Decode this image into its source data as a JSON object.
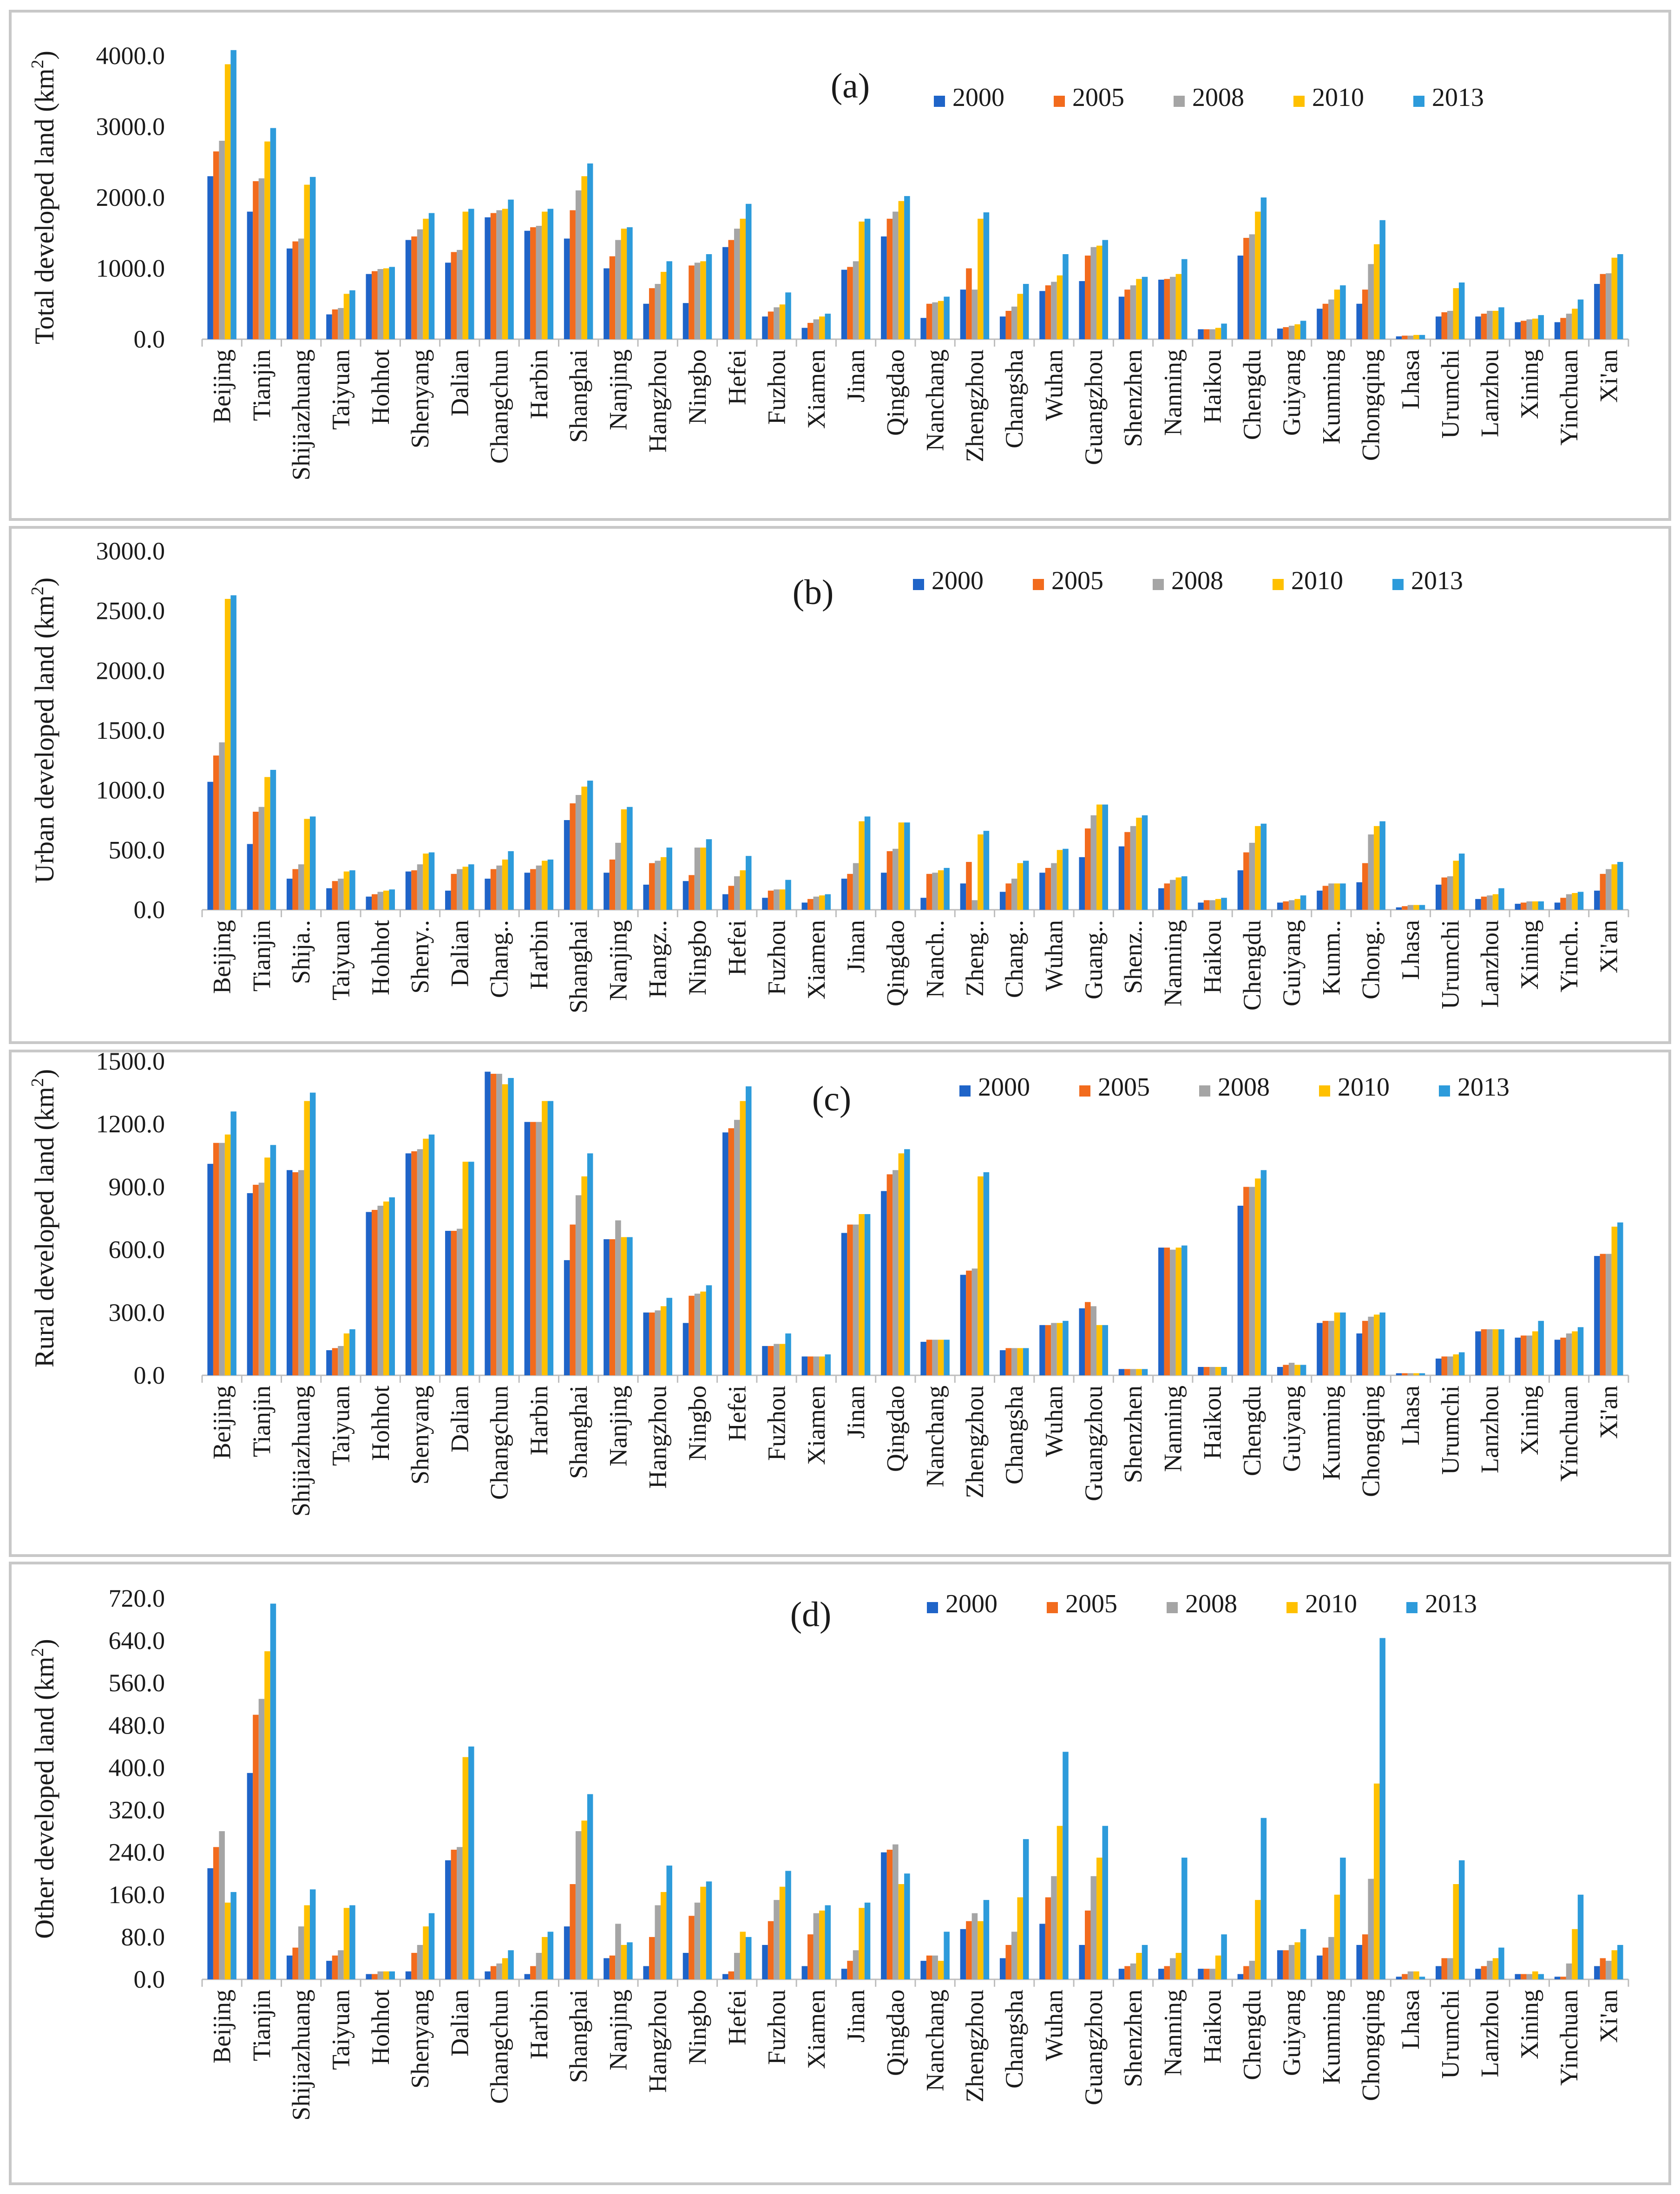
{
  "figure": {
    "series_colors": [
      "#1F64C8",
      "#F26B1D",
      "#A5A5A5",
      "#FFC000",
      "#2D9BDB"
    ],
    "legend_labels": [
      "2000",
      "2005",
      "2008",
      "2010",
      "2013"
    ]
  },
  "chart_data": [
    {
      "type": "bar",
      "panel_label": "(a)",
      "ylabel_main": "Total developed land (km",
      "ylabel_sup": "2",
      "ylabel_end": ")",
      "ylim": [
        0,
        4000
      ],
      "yticks": [
        0,
        1000,
        2000,
        3000,
        4000
      ],
      "ytick_labels": [
        "0.0",
        "1000.0",
        "2000.0",
        "3000.0",
        "4000.0"
      ],
      "categories": [
        "Beijing",
        "Tianjin",
        "Shijiazhuang",
        "Taiyuan",
        "Hohhot",
        "Shenyang",
        "Dalian",
        "Changchun",
        "Harbin",
        "Shanghai",
        "Nanjing",
        "Hangzhou",
        "Ningbo",
        "Hefei",
        "Fuzhou",
        "Xiamen",
        "Jinan",
        "Qingdao",
        "Nanchang",
        "Zhengzhou",
        "Changsha",
        "Wuhan",
        "Guangzhou",
        "Shenzhen",
        "Nanning",
        "Haikou",
        "Chengdu",
        "Guiyang",
        "Kunming",
        "Chongqing",
        "Lhasa",
        "Urumchi",
        "Lanzhou",
        "Xining",
        "Yinchuan",
        "Xi'an"
      ],
      "series": [
        {
          "name": "2000",
          "values": [
            2300,
            1800,
            1280,
            350,
            920,
            1400,
            1080,
            1720,
            1530,
            1420,
            1000,
            500,
            510,
            1300,
            320,
            160,
            980,
            1450,
            300,
            700,
            320,
            680,
            820,
            600,
            840,
            140,
            1180,
            150,
            430,
            500,
            40,
            320,
            320,
            240,
            240,
            780
          ]
        },
        {
          "name": "2005",
          "values": [
            2650,
            2230,
            1380,
            420,
            960,
            1450,
            1230,
            1780,
            1580,
            1820,
            1170,
            720,
            1040,
            1400,
            390,
            230,
            1020,
            1700,
            500,
            1000,
            400,
            760,
            1180,
            700,
            850,
            140,
            1430,
            170,
            500,
            700,
            50,
            380,
            360,
            260,
            300,
            920
          ]
        },
        {
          "name": "2008",
          "values": [
            2800,
            2270,
            1420,
            440,
            990,
            1550,
            1260,
            1820,
            1600,
            2100,
            1400,
            780,
            1080,
            1560,
            450,
            280,
            1100,
            1800,
            520,
            700,
            460,
            810,
            1300,
            760,
            880,
            140,
            1480,
            190,
            560,
            1060,
            50,
            400,
            400,
            280,
            360,
            930
          ]
        },
        {
          "name": "2010",
          "values": [
            3880,
            2790,
            2180,
            640,
            1000,
            1700,
            1800,
            1840,
            1800,
            2300,
            1560,
            950,
            1100,
            1700,
            490,
            320,
            1660,
            1950,
            540,
            1700,
            640,
            900,
            1320,
            850,
            920,
            160,
            1800,
            210,
            700,
            1340,
            60,
            720,
            400,
            290,
            430,
            1150
          ]
        },
        {
          "name": "2013",
          "values": [
            4080,
            2980,
            2290,
            690,
            1020,
            1780,
            1840,
            1970,
            1840,
            2480,
            1580,
            1100,
            1200,
            1910,
            660,
            360,
            1700,
            2020,
            600,
            1790,
            780,
            1200,
            1400,
            880,
            1130,
            220,
            2000,
            260,
            760,
            1680,
            60,
            800,
            450,
            340,
            560,
            1200
          ]
        }
      ]
    },
    {
      "type": "bar",
      "panel_label": "(b)",
      "ylabel_main": "Urban developed land (km",
      "ylabel_sup": "2",
      "ylabel_end": ")",
      "ylim": [
        0,
        3000
      ],
      "yticks": [
        0,
        500,
        1000,
        1500,
        2000,
        2500,
        3000
      ],
      "ytick_labels": [
        "0.0",
        "500.0",
        "1000.0",
        "1500.0",
        "2000.0",
        "2500.0",
        "3000.0"
      ],
      "categories": [
        "Beijing",
        "Tianjin",
        "Shija..",
        "Taiyuan",
        "Hohhot",
        "Sheny..",
        "Dalian",
        "Chang..",
        "Harbin",
        "Shanghai",
        "Nanjing",
        "Hangz..",
        "Ningbo",
        "Hefei",
        "Fuzhou",
        "Xiamen",
        "Jinan",
        "Qingdao",
        "Nanch..",
        "Zheng..",
        "Chang..",
        "Wuhan",
        "Guang..",
        "Shenz..",
        "Nanning",
        "Haikou",
        "Chengdu",
        "Guiyang",
        "Kunm..",
        "Chong..",
        "Lhasa",
        "Urumchi",
        "Lanzhou",
        "Xining",
        "Yinch..",
        "Xi'an"
      ],
      "series": [
        {
          "name": "2000",
          "values": [
            1070,
            550,
            260,
            180,
            110,
            320,
            160,
            260,
            310,
            750,
            310,
            210,
            240,
            130,
            100,
            60,
            260,
            310,
            100,
            220,
            150,
            310,
            440,
            530,
            180,
            60,
            330,
            60,
            160,
            230,
            20,
            210,
            90,
            50,
            60,
            160
          ]
        },
        {
          "name": "2005",
          "values": [
            1290,
            820,
            340,
            240,
            130,
            330,
            300,
            340,
            340,
            890,
            420,
            390,
            290,
            200,
            160,
            90,
            300,
            490,
            300,
            400,
            220,
            350,
            680,
            650,
            220,
            80,
            480,
            70,
            200,
            390,
            30,
            270,
            110,
            60,
            100,
            300
          ]
        },
        {
          "name": "2008",
          "values": [
            1400,
            860,
            380,
            260,
            150,
            380,
            340,
            370,
            370,
            960,
            560,
            410,
            520,
            280,
            170,
            110,
            390,
            510,
            310,
            80,
            260,
            390,
            790,
            700,
            250,
            80,
            560,
            80,
            220,
            630,
            40,
            280,
            120,
            70,
            130,
            340
          ]
        },
        {
          "name": "2010",
          "values": [
            2600,
            1110,
            760,
            320,
            160,
            470,
            360,
            420,
            410,
            1030,
            840,
            440,
            520,
            330,
            170,
            120,
            740,
            730,
            330,
            630,
            390,
            500,
            880,
            770,
            270,
            90,
            700,
            90,
            220,
            700,
            40,
            410,
            130,
            70,
            140,
            380
          ]
        },
        {
          "name": "2013",
          "values": [
            2630,
            1170,
            780,
            330,
            170,
            480,
            380,
            490,
            420,
            1080,
            860,
            520,
            590,
            450,
            250,
            130,
            780,
            730,
            350,
            660,
            410,
            510,
            880,
            790,
            280,
            100,
            720,
            120,
            220,
            740,
            40,
            470,
            180,
            70,
            150,
            400
          ]
        }
      ]
    },
    {
      "type": "bar",
      "panel_label": "(c)",
      "ylabel_main": "Rural developed land (km",
      "ylabel_sup": "2",
      "ylabel_end": ")",
      "ylim": [
        0,
        1500
      ],
      "yticks": [
        0,
        300,
        600,
        900,
        1200,
        1500
      ],
      "ytick_labels": [
        "0.0",
        "300.0",
        "600.0",
        "900.0",
        "1200.0",
        "1500.0"
      ],
      "categories": [
        "Beijing",
        "Tianjin",
        "Shijiazhuang",
        "Taiyuan",
        "Hohhot",
        "Shenyang",
        "Dalian",
        "Changchun",
        "Harbin",
        "Shanghai",
        "Nanjing",
        "Hangzhou",
        "Ningbo",
        "Hefei",
        "Fuzhou",
        "Xiamen",
        "Jinan",
        "Qingdao",
        "Nanchang",
        "Zhengzhou",
        "Changsha",
        "Wuhan",
        "Guangzhou",
        "Shenzhen",
        "Nanning",
        "Haikou",
        "Chengdu",
        "Guiyang",
        "Kunming",
        "Chongqing",
        "Lhasa",
        "Urumchi",
        "Lanzhou",
        "Xining",
        "Yinchuan",
        "Xi'an"
      ],
      "series": [
        {
          "name": "2000",
          "values": [
            1010,
            870,
            980,
            120,
            780,
            1060,
            690,
            1450,
            1210,
            550,
            650,
            300,
            250,
            1160,
            140,
            90,
            680,
            880,
            160,
            480,
            120,
            240,
            320,
            30,
            610,
            40,
            810,
            40,
            250,
            200,
            10,
            80,
            210,
            180,
            170,
            570
          ]
        },
        {
          "name": "2005",
          "values": [
            1110,
            910,
            970,
            130,
            790,
            1070,
            690,
            1440,
            1210,
            720,
            650,
            300,
            380,
            1180,
            140,
            90,
            720,
            960,
            170,
            500,
            130,
            240,
            350,
            30,
            610,
            40,
            900,
            50,
            260,
            260,
            10,
            90,
            220,
            190,
            180,
            580
          ]
        },
        {
          "name": "2008",
          "values": [
            1110,
            920,
            980,
            140,
            810,
            1080,
            700,
            1440,
            1210,
            860,
            740,
            310,
            390,
            1220,
            150,
            90,
            720,
            980,
            170,
            510,
            130,
            250,
            330,
            30,
            600,
            40,
            900,
            60,
            260,
            280,
            10,
            90,
            220,
            190,
            200,
            580
          ]
        },
        {
          "name": "2010",
          "values": [
            1150,
            1040,
            1310,
            200,
            830,
            1130,
            1020,
            1390,
            1310,
            950,
            660,
            330,
            400,
            1310,
            150,
            90,
            770,
            1060,
            170,
            950,
            130,
            250,
            240,
            30,
            610,
            40,
            940,
            50,
            300,
            290,
            10,
            100,
            220,
            210,
            210,
            710
          ]
        },
        {
          "name": "2013",
          "values": [
            1260,
            1100,
            1350,
            220,
            850,
            1150,
            1020,
            1420,
            1310,
            1060,
            660,
            370,
            430,
            1380,
            200,
            100,
            770,
            1080,
            170,
            970,
            130,
            260,
            240,
            30,
            620,
            40,
            980,
            50,
            300,
            300,
            10,
            110,
            220,
            260,
            230,
            730
          ]
        }
      ]
    },
    {
      "type": "bar",
      "panel_label": "(d)",
      "ylabel_main": "Other developed land (km",
      "ylabel_sup": "2",
      "ylabel_end": ")",
      "ylim": [
        0,
        720
      ],
      "yticks": [
        0,
        80,
        160,
        240,
        320,
        400,
        480,
        560,
        640,
        720
      ],
      "ytick_labels": [
        "0.0",
        "80.0",
        "160.0",
        "240.0",
        "320.0",
        "400.0",
        "480.0",
        "560.0",
        "640.0",
        "720.0"
      ],
      "categories": [
        "Beijing",
        "Tianjin",
        "Shijiazhuang",
        "Taiyuan",
        "Hohhot",
        "Shenyang",
        "Dalian",
        "Changchun",
        "Harbin",
        "Shanghai",
        "Nanjing",
        "Hangzhou",
        "Ningbo",
        "Hefei",
        "Fuzhou",
        "Xiamen",
        "Jinan",
        "Qingdao",
        "Nanchang",
        "Zhengzhou",
        "Changsha",
        "Wuhan",
        "Guangzhou",
        "Shenzhen",
        "Nanning",
        "Haikou",
        "Chengdu",
        "Guiyang",
        "Kunming",
        "Chongqing",
        "Lhasa",
        "Urumchi",
        "Lanzhou",
        "Xining",
        "Yinchuan",
        "Xi'an"
      ],
      "series": [
        {
          "name": "2000",
          "values": [
            210,
            390,
            45,
            35,
            10,
            15,
            225,
            15,
            10,
            100,
            40,
            25,
            50,
            10,
            65,
            25,
            20,
            240,
            35,
            95,
            40,
            105,
            65,
            20,
            20,
            20,
            10,
            55,
            45,
            65,
            5,
            25,
            20,
            10,
            5,
            25
          ]
        },
        {
          "name": "2005",
          "values": [
            250,
            500,
            60,
            45,
            10,
            50,
            245,
            25,
            25,
            180,
            45,
            80,
            120,
            15,
            110,
            85,
            35,
            245,
            45,
            110,
            65,
            155,
            130,
            25,
            25,
            20,
            25,
            55,
            60,
            85,
            10,
            40,
            25,
            10,
            5,
            40
          ]
        },
        {
          "name": "2008",
          "values": [
            280,
            530,
            100,
            55,
            15,
            65,
            250,
            30,
            50,
            280,
            105,
            140,
            145,
            50,
            150,
            125,
            55,
            255,
            45,
            125,
            90,
            195,
            195,
            30,
            40,
            20,
            35,
            65,
            80,
            190,
            15,
            40,
            35,
            10,
            30,
            35
          ]
        },
        {
          "name": "2010",
          "values": [
            145,
            620,
            140,
            135,
            15,
            100,
            420,
            40,
            80,
            300,
            65,
            165,
            175,
            90,
            175,
            130,
            135,
            180,
            35,
            110,
            155,
            290,
            230,
            50,
            50,
            45,
            150,
            70,
            160,
            370,
            15,
            180,
            40,
            15,
            95,
            55
          ]
        },
        {
          "name": "2013",
          "values": [
            165,
            710,
            170,
            140,
            15,
            125,
            440,
            55,
            90,
            350,
            70,
            215,
            185,
            80,
            205,
            140,
            145,
            200,
            90,
            150,
            265,
            430,
            290,
            65,
            230,
            85,
            305,
            95,
            230,
            645,
            5,
            225,
            60,
            10,
            160,
            65
          ]
        }
      ]
    }
  ]
}
